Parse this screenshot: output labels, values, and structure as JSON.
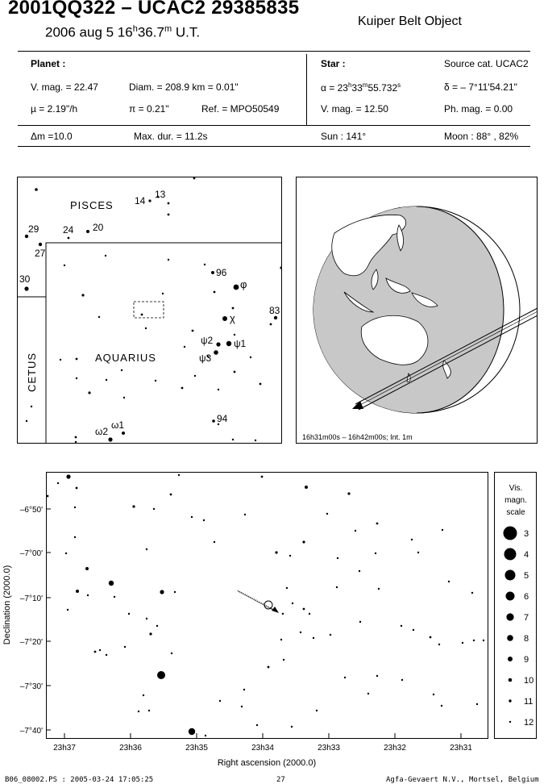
{
  "header": {
    "title": "2001QQ322  –  UCAC2 29385835",
    "date_prefix": "2006 aug  5  16",
    "date_h": "h",
    "date_mid": "36.7",
    "date_m": "m",
    "date_suffix": " U.T.",
    "object_type": "Kuiper Belt Object"
  },
  "planet": {
    "heading": "Planet :",
    "vmag": "V. mag. = 22.47",
    "diam": "Diam. = 208.9 km = 0.01\"",
    "mu": "µ =  2.19\"/h",
    "pi": "π =  0.21\"",
    "ref": "Ref. = MPO50549",
    "dm": "Δm =10.0",
    "maxdur": "Max. dur. = 11.2s"
  },
  "star": {
    "heading": "Star :",
    "source": "Source cat.  UCAC2",
    "alpha_a": "α = 23",
    "alpha_h": "h",
    "alpha_b": "33",
    "alpha_m": "m",
    "alpha_c": "55.732",
    "alpha_s": "s",
    "delta": "δ = – 7°11'54.21\"",
    "vmag": "V. mag. = 12.50",
    "phmag": "Ph. mag. =  0.00",
    "sun": "Sun : 141°",
    "moon": "Moon :  88° , 82%"
  },
  "finder": {
    "constellations": [
      "PISCES",
      "AQUARIUS",
      "CETUS"
    ],
    "labels": [
      {
        "t": "14"
      },
      {
        "t": "13"
      },
      {
        "t": "29"
      },
      {
        "t": "24"
      },
      {
        "t": "20"
      },
      {
        "t": "27"
      },
      {
        "t": "30"
      },
      {
        "t": "96"
      },
      {
        "t": "φ"
      },
      {
        "t": "χ"
      },
      {
        "t": "83"
      },
      {
        "t": "ψ2"
      },
      {
        "t": "ψ1"
      },
      {
        "t": "ψ3"
      },
      {
        "t": "94"
      },
      {
        "t": "ω2"
      },
      {
        "t": "ω1"
      }
    ]
  },
  "globe": {
    "caption": "16h31m00s – 16h42m00s; Int.  1m"
  },
  "detail": {
    "y_axis_label": "Declination (2000.0)",
    "x_axis_label": "Right ascension (2000.0)",
    "y_ticks": [
      "–6°50'",
      "–7°00'",
      "–7°10'",
      "–7°20'",
      "–7°30'",
      "–7°40'"
    ],
    "x_ticks": [
      "23h37",
      "23h36",
      "23h35",
      "23h34",
      "23h33",
      "23h32",
      "23h31"
    ]
  },
  "legend": {
    "title_1": "Vis.",
    "title_2": "magn.",
    "title_3": "scale",
    "magnitudes": [
      "3",
      "4",
      "5",
      "6",
      "7",
      "8",
      "9",
      "10",
      "11",
      "12"
    ]
  },
  "footer": {
    "left": "B06_08002.PS : 2005-03-24 17:05:25",
    "center": "27",
    "right": "Agfa-Gevaert N.V., Mortsel, Belgium"
  }
}
